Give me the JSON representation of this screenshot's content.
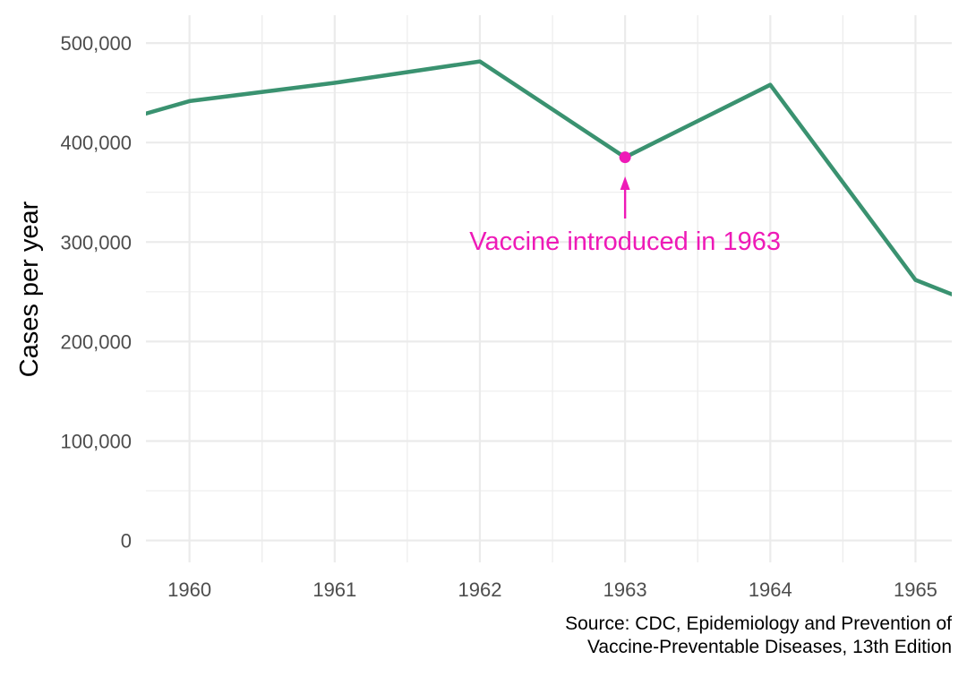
{
  "chart_data": {
    "type": "line",
    "xlabel": "",
    "ylabel": "Cases per year",
    "x_ticks": [
      "1960",
      "1961",
      "1962",
      "1963",
      "1964",
      "1965"
    ],
    "y_ticks": [
      "0",
      "100,000",
      "200,000",
      "300,000",
      "400,000",
      "500,000"
    ],
    "xlim": [
      1959.7,
      1965.25
    ],
    "ylim": [
      -22000,
      528000
    ],
    "grid": true,
    "series": [
      {
        "x": [
          1959,
          1960,
          1961,
          1962,
          1963,
          1964,
          1965,
          1966
        ],
        "values": [
          400000,
          441703,
          460000,
          481530,
          385156,
          458083,
          261904,
          204136
        ]
      }
    ],
    "highlight": {
      "x": 1963,
      "y": 385156
    },
    "annotation": {
      "text": "Vaccine introduced in 1963",
      "x": 1963,
      "y": 300000
    },
    "colors": {
      "line": "#3a9270",
      "highlight": "#ee1ab7",
      "grid": "#ebebeb",
      "tick_text": "#4d4d4d"
    }
  },
  "caption": {
    "line1": "Source: CDC, Epidemiology and Prevention of",
    "line2": "Vaccine-Preventable Diseases, 13th Edition"
  }
}
